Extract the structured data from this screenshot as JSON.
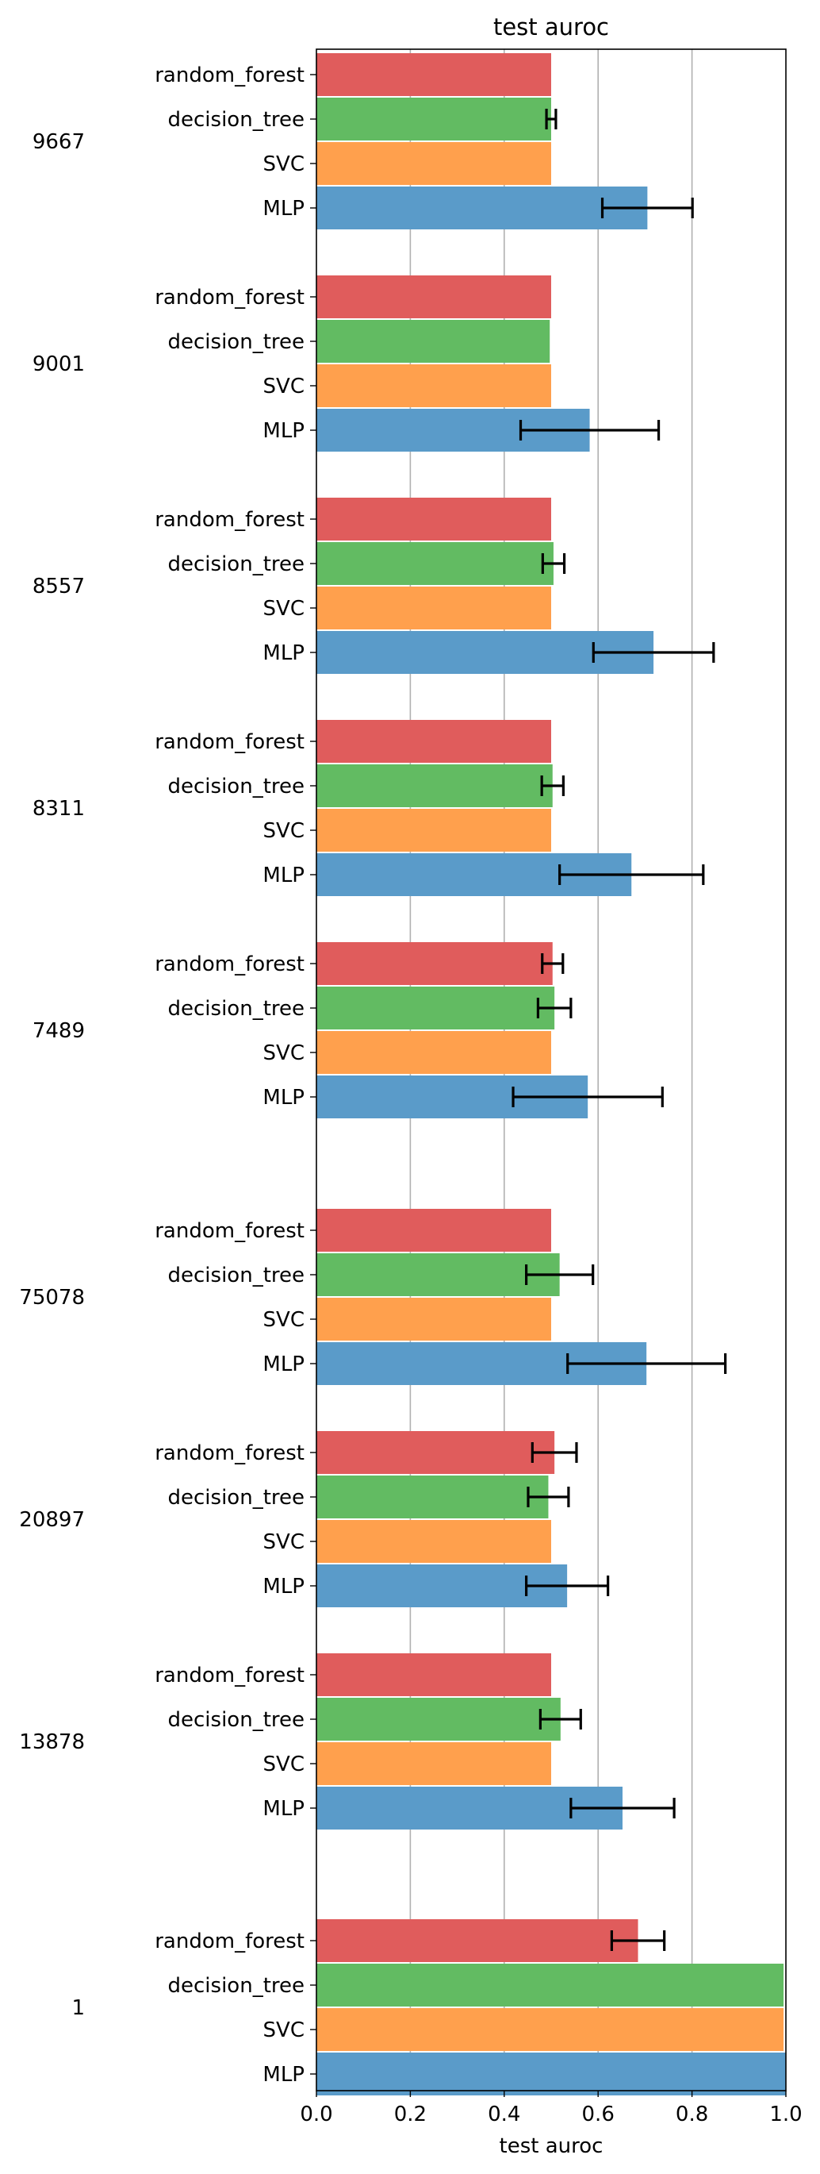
{
  "chart_data": {
    "type": "bar",
    "orientation": "horizontal",
    "title": "test auroc",
    "xlabel": "test auroc",
    "xlim": [
      0.0,
      1.0
    ],
    "xticks": [
      "0.0",
      "0.2",
      "0.4",
      "0.6",
      "0.8",
      "1.0"
    ],
    "grid": "vertical",
    "series_colors": {
      "random_forest": "#e05c5c",
      "decision_tree": "#62bb62",
      "SVC": "#ffa04d",
      "MLP": "#5a9bc9"
    },
    "groups": [
      {
        "label": "9667",
        "bars": [
          {
            "model": "random_forest",
            "value": 0.5,
            "err": null
          },
          {
            "model": "decision_tree",
            "value": 0.5,
            "err": 0.01
          },
          {
            "model": "SVC",
            "value": 0.5,
            "err": null
          },
          {
            "model": "MLP",
            "value": 0.705,
            "err": 0.096
          }
        ]
      },
      {
        "label": "9001",
        "bars": [
          {
            "model": "random_forest",
            "value": 0.5,
            "err": null
          },
          {
            "model": "decision_tree",
            "value": 0.497,
            "err": null
          },
          {
            "model": "SVC",
            "value": 0.5,
            "err": null
          },
          {
            "model": "MLP",
            "value": 0.582,
            "err": 0.147
          }
        ]
      },
      {
        "label": "8557",
        "bars": [
          {
            "model": "random_forest",
            "value": 0.5,
            "err": null
          },
          {
            "model": "decision_tree",
            "value": 0.505,
            "err": 0.023
          },
          {
            "model": "SVC",
            "value": 0.5,
            "err": null
          },
          {
            "model": "MLP",
            "value": 0.718,
            "err": 0.128
          }
        ]
      },
      {
        "label": "8311",
        "bars": [
          {
            "model": "random_forest",
            "value": 0.5,
            "err": null
          },
          {
            "model": "decision_tree",
            "value": 0.503,
            "err": 0.023
          },
          {
            "model": "SVC",
            "value": 0.5,
            "err": null
          },
          {
            "model": "MLP",
            "value": 0.671,
            "err": 0.153
          }
        ]
      },
      {
        "label": "7489",
        "bars": [
          {
            "model": "random_forest",
            "value": 0.503,
            "err": 0.022
          },
          {
            "model": "decision_tree",
            "value": 0.507,
            "err": 0.035
          },
          {
            "model": "SVC",
            "value": 0.5,
            "err": null
          },
          {
            "model": "MLP",
            "value": 0.578,
            "err": 0.159
          }
        ]
      },
      {
        "label": "75078",
        "bars": [
          {
            "model": "random_forest",
            "value": 0.5,
            "err": null
          },
          {
            "model": "decision_tree",
            "value": 0.518,
            "err": 0.071
          },
          {
            "model": "SVC",
            "value": 0.5,
            "err": null
          },
          {
            "model": "MLP",
            "value": 0.703,
            "err": 0.168
          }
        ]
      },
      {
        "label": "20897",
        "bars": [
          {
            "model": "random_forest",
            "value": 0.507,
            "err": 0.047
          },
          {
            "model": "decision_tree",
            "value": 0.494,
            "err": 0.043
          },
          {
            "model": "SVC",
            "value": 0.5,
            "err": null
          },
          {
            "model": "MLP",
            "value": 0.534,
            "err": 0.087
          }
        ]
      },
      {
        "label": "13878",
        "bars": [
          {
            "model": "random_forest",
            "value": 0.5,
            "err": null
          },
          {
            "model": "decision_tree",
            "value": 0.52,
            "err": 0.043
          },
          {
            "model": "SVC",
            "value": 0.5,
            "err": null
          },
          {
            "model": "MLP",
            "value": 0.652,
            "err": 0.11
          }
        ]
      },
      {
        "label": "1",
        "bars": [
          {
            "model": "random_forest",
            "value": 0.685,
            "err": 0.056
          },
          {
            "model": "decision_tree",
            "value": 0.995,
            "err": null
          },
          {
            "model": "SVC",
            "value": 0.995,
            "err": null
          },
          {
            "model": "MLP",
            "value": 1.0,
            "err": null
          }
        ]
      }
    ]
  }
}
